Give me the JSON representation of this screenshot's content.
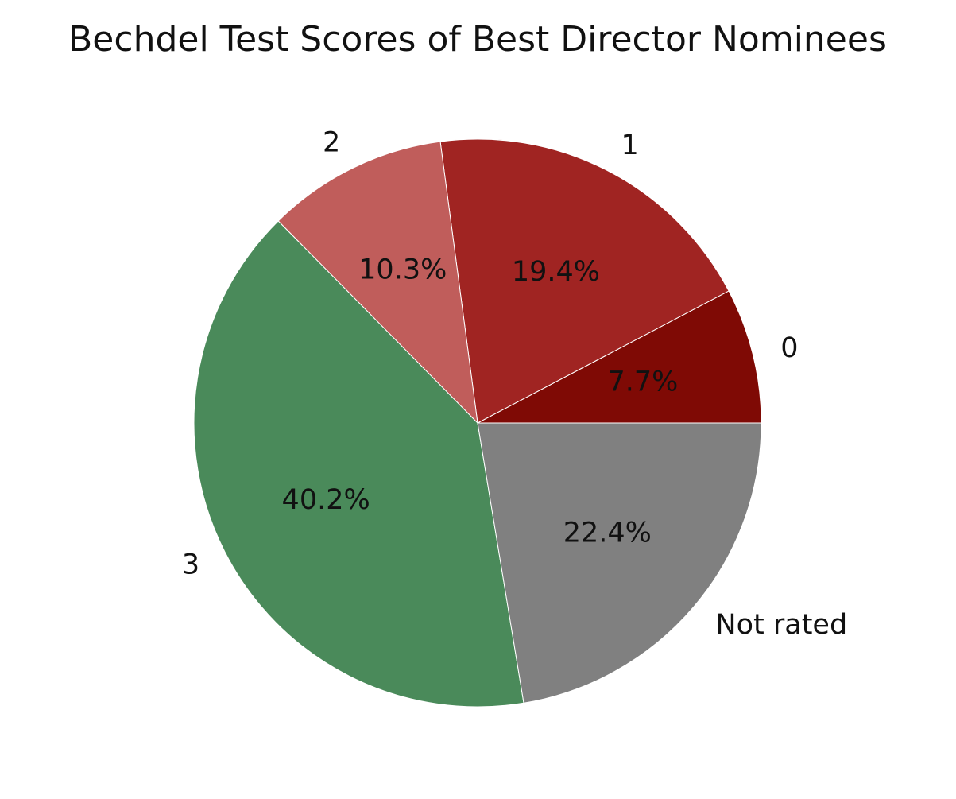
{
  "chart_data": {
    "type": "pie",
    "title": "Bechdel Test Scores of Best Director Nominees",
    "slices": [
      {
        "label": "0",
        "value": 7.7,
        "pct_label": "7.7%",
        "color": "#7f0a05"
      },
      {
        "label": "1",
        "value": 19.4,
        "pct_label": "19.4%",
        "color": "#a02422"
      },
      {
        "label": "2",
        "value": 10.3,
        "pct_label": "10.3%",
        "color": "#c05d5b"
      },
      {
        "label": "3",
        "value": 40.2,
        "pct_label": "40.2%",
        "color": "#4a8a5a"
      },
      {
        "label": "Not rated",
        "value": 22.4,
        "pct_label": "22.4%",
        "color": "#808080"
      }
    ],
    "start_angle": 0,
    "direction": "counterclockwise",
    "legend": "none"
  }
}
